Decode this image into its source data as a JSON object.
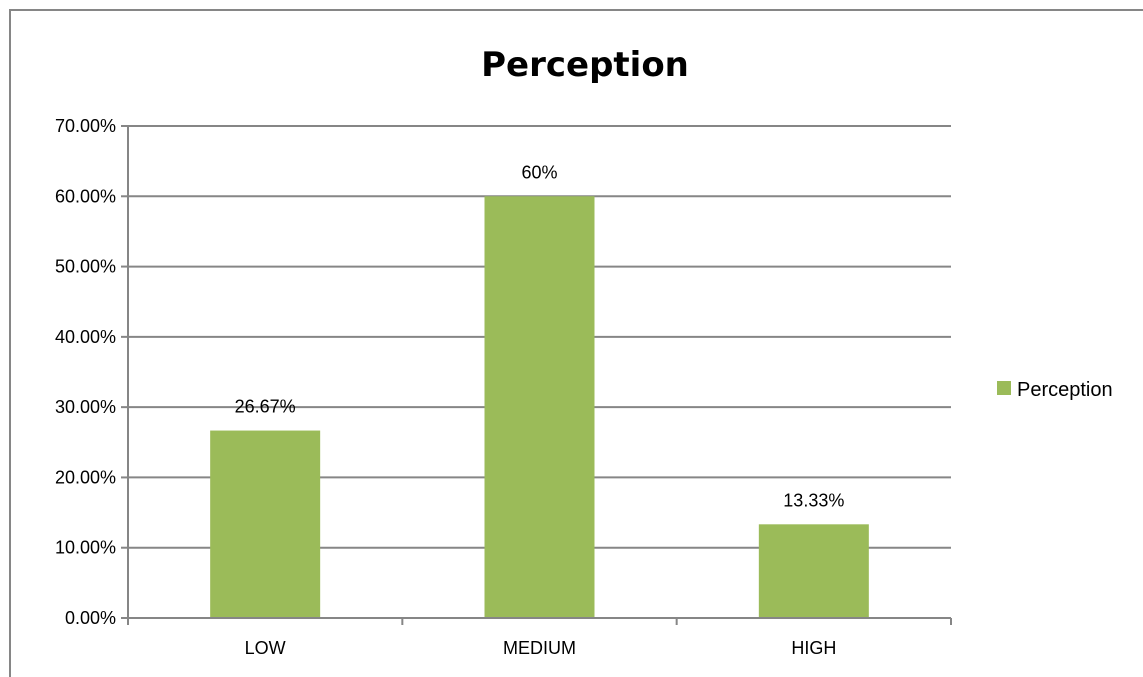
{
  "chart_data": {
    "type": "bar",
    "title": "Perception",
    "xlabel": "",
    "ylabel": "",
    "categories": [
      "LOW",
      "MEDIUM",
      "HIGH"
    ],
    "series": [
      {
        "name": "Perception",
        "values": [
          0.2667,
          0.6,
          0.1333
        ],
        "data_labels": [
          "26.67%",
          "60%",
          "13.33%"
        ],
        "color": "#9BBB59"
      }
    ],
    "ylim": [
      0,
      0.7
    ],
    "y_ticks": [
      0,
      0.1,
      0.2,
      0.3,
      0.4,
      0.5,
      0.6,
      0.7
    ],
    "y_tick_labels": [
      "0.00%",
      "10.00%",
      "20.00%",
      "30.00%",
      "40.00%",
      "50.00%",
      "60.00%",
      "70.00%"
    ],
    "grid": true,
    "gridline_color": "#868686",
    "legend_position": "right"
  }
}
